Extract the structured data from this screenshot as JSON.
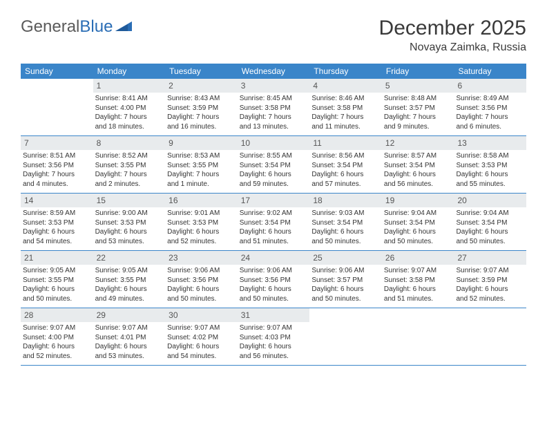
{
  "logo": {
    "text_gray": "General",
    "text_blue": "Blue"
  },
  "header": {
    "month_title": "December 2025",
    "location": "Novaya Zaimka, Russia"
  },
  "colors": {
    "header_blue": "#3a85c9",
    "daynum_bg": "#e8ebed",
    "text": "#333333",
    "logo_gray": "#5a5a5a",
    "logo_blue": "#2a6db5"
  },
  "weekdays": [
    "Sunday",
    "Monday",
    "Tuesday",
    "Wednesday",
    "Thursday",
    "Friday",
    "Saturday"
  ],
  "weeks": [
    [
      {
        "day": "",
        "lines": [
          "",
          "",
          "",
          ""
        ]
      },
      {
        "day": "1",
        "lines": [
          "Sunrise: 8:41 AM",
          "Sunset: 4:00 PM",
          "Daylight: 7 hours",
          "and 18 minutes."
        ]
      },
      {
        "day": "2",
        "lines": [
          "Sunrise: 8:43 AM",
          "Sunset: 3:59 PM",
          "Daylight: 7 hours",
          "and 16 minutes."
        ]
      },
      {
        "day": "3",
        "lines": [
          "Sunrise: 8:45 AM",
          "Sunset: 3:58 PM",
          "Daylight: 7 hours",
          "and 13 minutes."
        ]
      },
      {
        "day": "4",
        "lines": [
          "Sunrise: 8:46 AM",
          "Sunset: 3:58 PM",
          "Daylight: 7 hours",
          "and 11 minutes."
        ]
      },
      {
        "day": "5",
        "lines": [
          "Sunrise: 8:48 AM",
          "Sunset: 3:57 PM",
          "Daylight: 7 hours",
          "and 9 minutes."
        ]
      },
      {
        "day": "6",
        "lines": [
          "Sunrise: 8:49 AM",
          "Sunset: 3:56 PM",
          "Daylight: 7 hours",
          "and 6 minutes."
        ]
      }
    ],
    [
      {
        "day": "7",
        "lines": [
          "Sunrise: 8:51 AM",
          "Sunset: 3:56 PM",
          "Daylight: 7 hours",
          "and 4 minutes."
        ]
      },
      {
        "day": "8",
        "lines": [
          "Sunrise: 8:52 AM",
          "Sunset: 3:55 PM",
          "Daylight: 7 hours",
          "and 2 minutes."
        ]
      },
      {
        "day": "9",
        "lines": [
          "Sunrise: 8:53 AM",
          "Sunset: 3:55 PM",
          "Daylight: 7 hours",
          "and 1 minute."
        ]
      },
      {
        "day": "10",
        "lines": [
          "Sunrise: 8:55 AM",
          "Sunset: 3:54 PM",
          "Daylight: 6 hours",
          "and 59 minutes."
        ]
      },
      {
        "day": "11",
        "lines": [
          "Sunrise: 8:56 AM",
          "Sunset: 3:54 PM",
          "Daylight: 6 hours",
          "and 57 minutes."
        ]
      },
      {
        "day": "12",
        "lines": [
          "Sunrise: 8:57 AM",
          "Sunset: 3:54 PM",
          "Daylight: 6 hours",
          "and 56 minutes."
        ]
      },
      {
        "day": "13",
        "lines": [
          "Sunrise: 8:58 AM",
          "Sunset: 3:53 PM",
          "Daylight: 6 hours",
          "and 55 minutes."
        ]
      }
    ],
    [
      {
        "day": "14",
        "lines": [
          "Sunrise: 8:59 AM",
          "Sunset: 3:53 PM",
          "Daylight: 6 hours",
          "and 54 minutes."
        ]
      },
      {
        "day": "15",
        "lines": [
          "Sunrise: 9:00 AM",
          "Sunset: 3:53 PM",
          "Daylight: 6 hours",
          "and 53 minutes."
        ]
      },
      {
        "day": "16",
        "lines": [
          "Sunrise: 9:01 AM",
          "Sunset: 3:53 PM",
          "Daylight: 6 hours",
          "and 52 minutes."
        ]
      },
      {
        "day": "17",
        "lines": [
          "Sunrise: 9:02 AM",
          "Sunset: 3:54 PM",
          "Daylight: 6 hours",
          "and 51 minutes."
        ]
      },
      {
        "day": "18",
        "lines": [
          "Sunrise: 9:03 AM",
          "Sunset: 3:54 PM",
          "Daylight: 6 hours",
          "and 50 minutes."
        ]
      },
      {
        "day": "19",
        "lines": [
          "Sunrise: 9:04 AM",
          "Sunset: 3:54 PM",
          "Daylight: 6 hours",
          "and 50 minutes."
        ]
      },
      {
        "day": "20",
        "lines": [
          "Sunrise: 9:04 AM",
          "Sunset: 3:54 PM",
          "Daylight: 6 hours",
          "and 50 minutes."
        ]
      }
    ],
    [
      {
        "day": "21",
        "lines": [
          "Sunrise: 9:05 AM",
          "Sunset: 3:55 PM",
          "Daylight: 6 hours",
          "and 50 minutes."
        ]
      },
      {
        "day": "22",
        "lines": [
          "Sunrise: 9:05 AM",
          "Sunset: 3:55 PM",
          "Daylight: 6 hours",
          "and 49 minutes."
        ]
      },
      {
        "day": "23",
        "lines": [
          "Sunrise: 9:06 AM",
          "Sunset: 3:56 PM",
          "Daylight: 6 hours",
          "and 50 minutes."
        ]
      },
      {
        "day": "24",
        "lines": [
          "Sunrise: 9:06 AM",
          "Sunset: 3:56 PM",
          "Daylight: 6 hours",
          "and 50 minutes."
        ]
      },
      {
        "day": "25",
        "lines": [
          "Sunrise: 9:06 AM",
          "Sunset: 3:57 PM",
          "Daylight: 6 hours",
          "and 50 minutes."
        ]
      },
      {
        "day": "26",
        "lines": [
          "Sunrise: 9:07 AM",
          "Sunset: 3:58 PM",
          "Daylight: 6 hours",
          "and 51 minutes."
        ]
      },
      {
        "day": "27",
        "lines": [
          "Sunrise: 9:07 AM",
          "Sunset: 3:59 PM",
          "Daylight: 6 hours",
          "and 52 minutes."
        ]
      }
    ],
    [
      {
        "day": "28",
        "lines": [
          "Sunrise: 9:07 AM",
          "Sunset: 4:00 PM",
          "Daylight: 6 hours",
          "and 52 minutes."
        ]
      },
      {
        "day": "29",
        "lines": [
          "Sunrise: 9:07 AM",
          "Sunset: 4:01 PM",
          "Daylight: 6 hours",
          "and 53 minutes."
        ]
      },
      {
        "day": "30",
        "lines": [
          "Sunrise: 9:07 AM",
          "Sunset: 4:02 PM",
          "Daylight: 6 hours",
          "and 54 minutes."
        ]
      },
      {
        "day": "31",
        "lines": [
          "Sunrise: 9:07 AM",
          "Sunset: 4:03 PM",
          "Daylight: 6 hours",
          "and 56 minutes."
        ]
      },
      {
        "day": "",
        "lines": [
          "",
          "",
          "",
          ""
        ]
      },
      {
        "day": "",
        "lines": [
          "",
          "",
          "",
          ""
        ]
      },
      {
        "day": "",
        "lines": [
          "",
          "",
          "",
          ""
        ]
      }
    ]
  ]
}
